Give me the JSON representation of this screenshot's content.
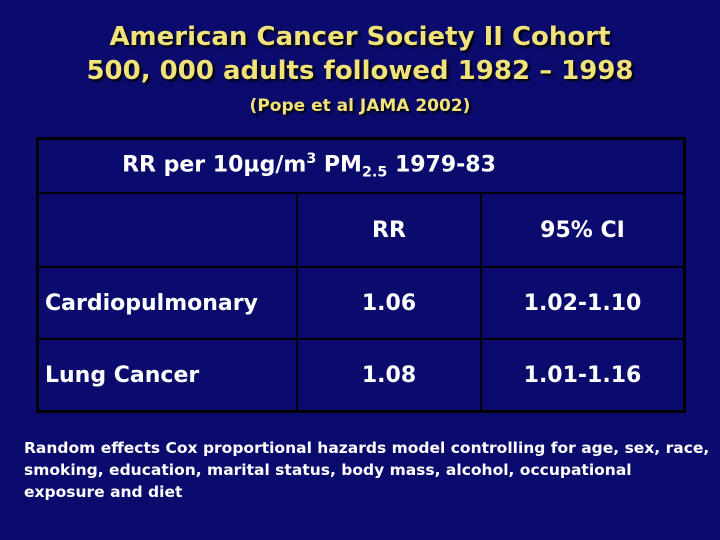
{
  "header": {
    "title_line1": "American Cancer Society II Cohort",
    "title_line2": "500, 000 adults  followed 1982 – 1998",
    "citation": "(Pope et al JAMA 2002)"
  },
  "table": {
    "caption_prefix": "RR per 10µg/m",
    "caption_sup": "3",
    "caption_mid": "  PM",
    "caption_sub": "2.5",
    "caption_suffix": " 1979-83",
    "columns": [
      "",
      "RR",
      "95% CI"
    ],
    "rows": [
      {
        "label": "Cardiopulmonary",
        "rr": "1.06",
        "ci": "1.02-1.10"
      },
      {
        "label": "Lung Cancer",
        "rr": "1.08",
        "ci": "1.01-1.16"
      }
    ]
  },
  "footnote": "Random effects Cox proportional hazards model controlling for age, sex, race, smoking, education, marital status, body mass, alcohol, occupational exposure and diet"
}
